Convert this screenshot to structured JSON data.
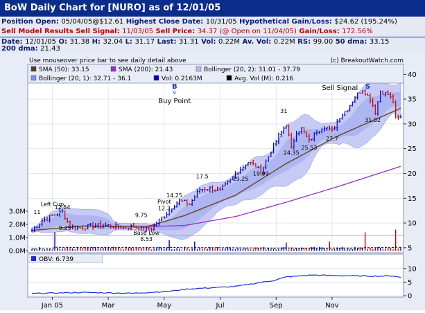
{
  "title": "BoW Daily Chart for [NURO] as of 12/01/05",
  "position_line": {
    "l1": "Position Open:",
    "v1": "05/04/05@$12.61",
    "l2": "Highest Close Date:",
    "v2": "10/31/05",
    "l3": "Hypothetical Gain/Loss:",
    "v3": "$24.62 (195.24%)"
  },
  "sell_line": {
    "l1": "Sell Model Results Sell Signal:",
    "v1": "11/03/05",
    "l2": "Sell Price:",
    "v2": "34.37 (@ Open on 11/04/05)",
    "l3": "Gain/Loss:",
    "v3": "172.56%"
  },
  "stats_line1": {
    "date_l": "Date:",
    "date_v": "12/01/05",
    "o_l": "O:",
    "o_v": "31.38",
    "h_l": "H:",
    "h_v": "32.04",
    "lo_l": "L:",
    "lo_v": "31.17",
    "last_l": "Last:",
    "last_v": "31.31",
    "vol_l": "Vol:",
    "vol_v": "0.22M",
    "av_l": "Av. Vol:",
    "av_v": "0.22M",
    "rs_l": "RS:",
    "rs_v": "99.00",
    "dma50_l": "50 dma:",
    "dma50_v": "33.15"
  },
  "stats_line2": {
    "dma200_l": "200 dma:",
    "dma200_v": "21.43"
  },
  "top_note": "Use mouseover price bar to see daily detail above",
  "copyright": "(c) BreakoutWatch.com",
  "colors": {
    "title_bg": "#0a2d8c",
    "price_bar_up": "#0000cc",
    "price_bar_down": "#cc0000",
    "sma50": "#5a3a1a",
    "sma200": "#9a2ecb",
    "boll_fill": "#b4bdf2",
    "obv": "#1a2fd8"
  },
  "chart_data": {
    "type": "line",
    "price_axis": {
      "min": 4,
      "max": 42,
      "ticks": [
        40,
        35,
        30,
        25,
        20,
        15,
        10,
        5
      ]
    },
    "volume_axis": {
      "ticks": [
        "3.0M",
        "2.0M",
        "1.0M",
        "0.0M"
      ]
    },
    "obv_axis": {
      "ticks": [
        10,
        5,
        0
      ]
    },
    "x_ticks": [
      "Jan 05",
      "Mar",
      "May",
      "Jul",
      "Sep",
      "Nov"
    ],
    "legend": [
      {
        "label": "SMA (50): 33.15",
        "color": "#5a3a1a"
      },
      {
        "label": "SMA (200): 21.43",
        "color": "#9a2ecb"
      },
      {
        "label": "Bollinger (20, 2): 31.01 - 37.79",
        "color": "#b4bdf2"
      },
      {
        "label": "Bollinger (20, 1): 32.71 - 36.1",
        "color": "#8090e8"
      },
      {
        "label": "Vol: 0.2163M",
        "color": "#0000cc"
      },
      {
        "label": "Avg. Vol (M): 0.216",
        "color": "#000000"
      }
    ],
    "obv_legend": {
      "label": "OBV: 6.739",
      "color": "#1a2fd8"
    },
    "annotations": [
      {
        "text": "Left Cup",
        "idx": 8,
        "price": 13.4
      },
      {
        "text": "11",
        "idx": 2,
        "price": 11.8
      },
      {
        "text": "12.54",
        "idx": 12,
        "price": 12.8
      },
      {
        "text": "9.25",
        "idx": 13,
        "price": 8.6
      },
      {
        "text": "9.75",
        "idx": 43,
        "price": 11.2
      },
      {
        "text": "Base Low",
        "idx": 45,
        "price": 7.6
      },
      {
        "text": "8.53",
        "idx": 45,
        "price": 6.4
      },
      {
        "text": "Pivot",
        "idx": 52,
        "price": 13.9
      },
      {
        "text": "12.3",
        "idx": 52,
        "price": 12.6
      },
      {
        "text": "14.25",
        "idx": 56,
        "price": 15.2
      },
      {
        "text": "17.5",
        "idx": 67,
        "price": 19.0
      },
      {
        "text": "19.25",
        "idx": 82,
        "price": 18.5
      },
      {
        "text": "19.99",
        "idx": 90,
        "price": 19.6
      },
      {
        "text": "31",
        "idx": 99,
        "price": 32.2
      },
      {
        "text": "24.35",
        "idx": 102,
        "price": 23.8
      },
      {
        "text": "25.53",
        "idx": 109,
        "price": 24.8
      },
      {
        "text": "27.7",
        "idx": 118,
        "price": 26.6
      },
      {
        "text": "37.48",
        "idx": 130,
        "price": 38.3
      },
      {
        "text": "37.38",
        "idx": 137,
        "price": 38.3
      },
      {
        "text": "31.02",
        "idx": 134,
        "price": 30.4
      }
    ],
    "signals": [
      {
        "letter": "B",
        "text": "Buy Point",
        "idx": 55
      },
      {
        "letter": "S",
        "text": "Sell Signal",
        "idx": 132
      }
    ],
    "n_days": 146,
    "first_tick_idx": 8,
    "month_tick_spacing": 22,
    "keypoints": [
      [
        0,
        8.5
      ],
      [
        4,
        10.5
      ],
      [
        8,
        11.5
      ],
      [
        12,
        12.3
      ],
      [
        15,
        9.3
      ],
      [
        19,
        9.0
      ],
      [
        24,
        9.5
      ],
      [
        30,
        9.5
      ],
      [
        36,
        9.0
      ],
      [
        40,
        9.3
      ],
      [
        44,
        8.6
      ],
      [
        47,
        8.9
      ],
      [
        50,
        10.5
      ],
      [
        53,
        12.0
      ],
      [
        55,
        13.2
      ],
      [
        58,
        14.5
      ],
      [
        62,
        13.8
      ],
      [
        66,
        16.8
      ],
      [
        70,
        17.0
      ],
      [
        74,
        16.5
      ],
      [
        78,
        18.5
      ],
      [
        81,
        20.5
      ],
      [
        85,
        22.3
      ],
      [
        88,
        21.5
      ],
      [
        90,
        20.3
      ],
      [
        94,
        24.5
      ],
      [
        97,
        27.5
      ],
      [
        100,
        30.0
      ],
      [
        102,
        25.0
      ],
      [
        104,
        28.5
      ],
      [
        106,
        29.0
      ],
      [
        109,
        26.5
      ],
      [
        112,
        28.5
      ],
      [
        115,
        29.5
      ],
      [
        118,
        28.5
      ],
      [
        121,
        31.5
      ],
      [
        124,
        33.0
      ],
      [
        127,
        35.5
      ],
      [
        130,
        37.0
      ],
      [
        133,
        35.0
      ],
      [
        135,
        32.5
      ],
      [
        137,
        36.5
      ],
      [
        140,
        36.0
      ],
      [
        142,
        34.5
      ],
      [
        143,
        31.0
      ],
      [
        145,
        31.3
      ]
    ],
    "sma50_keypoints": [
      [
        0,
        8.5
      ],
      [
        20,
        9.4
      ],
      [
        45,
        9.2
      ],
      [
        60,
        11.5
      ],
      [
        80,
        15.6
      ],
      [
        100,
        22.0
      ],
      [
        120,
        27.5
      ],
      [
        145,
        33.15
      ]
    ],
    "sma200_keypoints": [
      [
        40,
        9.2
      ],
      [
        60,
        9.5
      ],
      [
        80,
        11.3
      ],
      [
        100,
        14.2
      ],
      [
        120,
        17.3
      ],
      [
        145,
        21.43
      ]
    ],
    "volume_spikes": [
      [
        9,
        1.4
      ],
      [
        54,
        0.8
      ],
      [
        64,
        0.7
      ],
      [
        100,
        0.6
      ],
      [
        117,
        0.7
      ],
      [
        131,
        1.4
      ],
      [
        143,
        1.6
      ]
    ],
    "obv_keypoints": [
      [
        0,
        0.8
      ],
      [
        20,
        1.2
      ],
      [
        40,
        0.9
      ],
      [
        55,
        1.7
      ],
      [
        60,
        2.4
      ],
      [
        80,
        3.4
      ],
      [
        95,
        5.6
      ],
      [
        100,
        6.9
      ],
      [
        110,
        7.6
      ],
      [
        120,
        7.4
      ],
      [
        135,
        7.2
      ],
      [
        142,
        7.3
      ],
      [
        145,
        6.7
      ]
    ]
  }
}
